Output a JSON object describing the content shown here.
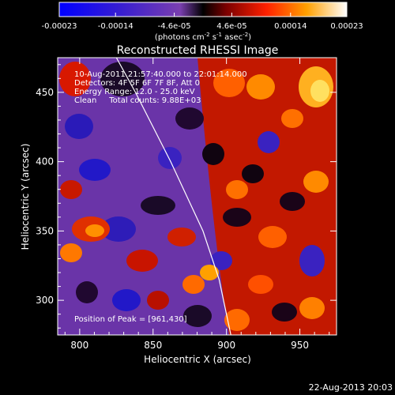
{
  "chart_data": {
    "type": "heatmap",
    "title": "Reconstructed RHESSI Image",
    "xlabel": "Heliocentric X (arcsec)",
    "ylabel": "Heliocentric Y (arcsec)",
    "xlim": [
      785,
      975
    ],
    "ylim": [
      275,
      475
    ],
    "x_ticks": [
      800,
      850,
      900,
      950
    ],
    "y_ticks": [
      300,
      350,
      400,
      450
    ],
    "colorbar": {
      "ticks": [
        "-0.00023",
        "-0.00014",
        "-4.6e-05",
        "4.6e-05",
        "0.00014",
        "0.00023"
      ],
      "tick_values": [
        -0.00023,
        -0.00014,
        -4.6e-05,
        4.6e-05,
        0.00014,
        0.00023
      ],
      "range": [
        -0.00023,
        0.00023
      ],
      "unit_label": {
        "prefix": "(photons cm",
        "sup1": "-2",
        "mid1": " s",
        "sup2": "-1",
        "mid2": " asec",
        "sup3": "-2",
        "suffix": ")"
      }
    },
    "annotations": [
      "10-Aug-2011 21:57:40.000 to 22:01:14.000",
      "Detectors: 4F 5F 6F 7F 8F, Att 0",
      "Energy Range: 12.0 - 25.0 keV",
      "Clean     Total counts: 9.88E+03"
    ],
    "peak_label": "Position of Peak = [961,430]",
    "peak_position": [
      961,
      430
    ],
    "limb_curve": {
      "x": [
        825,
        838,
        850,
        862,
        873,
        884,
        895,
        903
      ],
      "y": [
        475,
        450,
        425,
        400,
        375,
        350,
        315,
        275
      ]
    }
  },
  "footer": {
    "timestamp": "22-Aug-2013 20:03"
  }
}
